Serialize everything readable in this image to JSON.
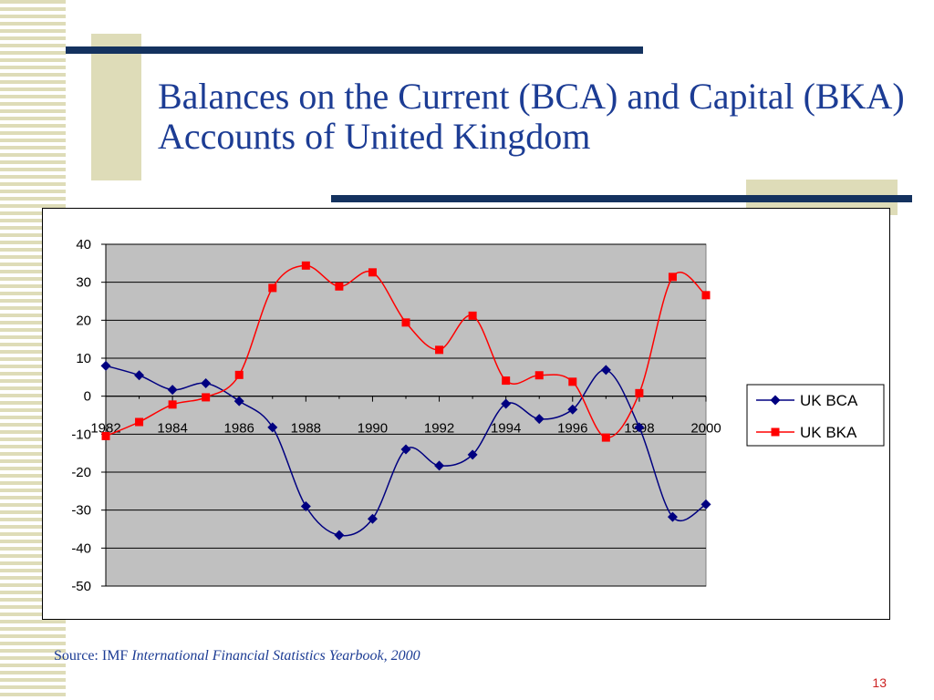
{
  "slide": {
    "title": "Balances on the Current (BCA) and Capital (BKA) Accounts of United Kingdom",
    "source_prefix": "Source: IMF ",
    "source_italic": "International Financial Statistics Yearbook, 2000",
    "page_number": "13"
  },
  "colors": {
    "accent_bar": "#14325f",
    "decor_tan": "#dedcb8",
    "title_text": "#1c3c94",
    "plot_bg": "#c0c0c0",
    "bca_series": "#000080",
    "bka_series": "#ff0000",
    "page_number": "#cc2222"
  },
  "chart_data": {
    "type": "line",
    "title": "",
    "xlabel": "",
    "ylabel": "",
    "x": [
      1982,
      1983,
      1984,
      1985,
      1986,
      1987,
      1988,
      1989,
      1990,
      1991,
      1992,
      1993,
      1994,
      1995,
      1996,
      1997,
      1998,
      1999,
      2000
    ],
    "x_tick_labels": [
      "1982",
      "1984",
      "1986",
      "1988",
      "1990",
      "1992",
      "1994",
      "1996",
      "1998",
      "2000"
    ],
    "y_ticks": [
      40,
      30,
      20,
      10,
      0,
      -10,
      -20,
      -30,
      -40,
      -50
    ],
    "ylim": [
      -50,
      40
    ],
    "grid": true,
    "legend": "right",
    "series": [
      {
        "name": "UK BCA",
        "marker": "diamond",
        "color": "#000080",
        "values": [
          8,
          5.5,
          1.7,
          3.4,
          -1.3,
          -8.2,
          -29,
          -36.6,
          -32.3,
          -14,
          -18.3,
          -15.4,
          -2,
          -6,
          -3.5,
          6.9,
          -8.2,
          -31.8,
          -28.5
        ]
      },
      {
        "name": "UK BKA",
        "marker": "square",
        "color": "#ff0000",
        "values": [
          -10.5,
          -6.8,
          -2.2,
          -0.3,
          5.6,
          28.5,
          34.4,
          28.9,
          32.6,
          19.4,
          12.2,
          21.2,
          4.1,
          5.5,
          3.8,
          -10.9,
          0.8,
          31.4,
          26.6
        ]
      }
    ]
  }
}
